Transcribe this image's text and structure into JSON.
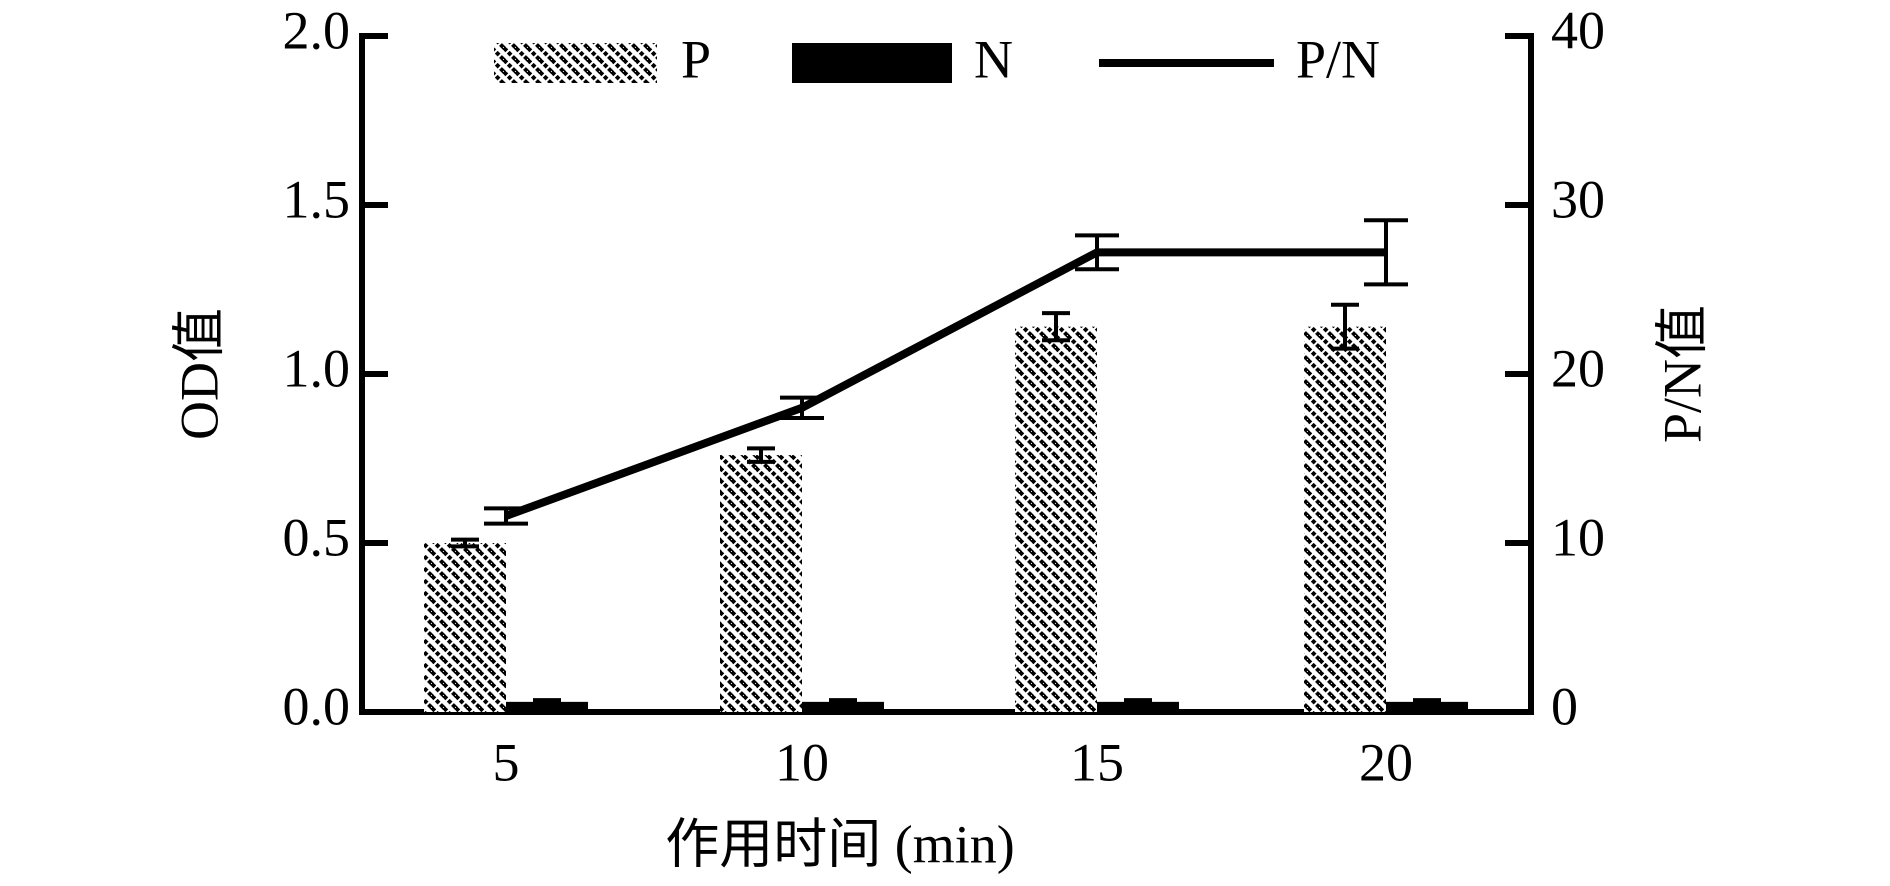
{
  "chart_data": {
    "type": "bar",
    "categories": [
      "5",
      "10",
      "15",
      "20"
    ],
    "series": [
      {
        "name": "P",
        "type": "bar",
        "color": "#000000",
        "pattern": "hatch",
        "values": [
          0.5,
          0.76,
          1.14,
          1.14
        ],
        "errors": [
          0.01,
          0.02,
          0.04,
          0.065
        ]
      },
      {
        "name": "N",
        "type": "bar",
        "color": "#000000",
        "values": [
          0.03,
          0.03,
          0.03,
          0.03
        ],
        "errors": [
          0.005,
          0.005,
          0.005,
          0.005
        ]
      },
      {
        "name": "P/N",
        "type": "line",
        "axis": "y2",
        "color": "#000000",
        "values": [
          11.6,
          18.0,
          27.2,
          27.2
        ],
        "errors": [
          0.45,
          0.6,
          1.0,
          1.9
        ]
      }
    ],
    "xlabel": "作用时间 (min)",
    "ylabel": "OD值",
    "y2label": "P/N值",
    "ylim": [
      0,
      2.0
    ],
    "yticks": [
      {
        "value": 0,
        "label": "0.0"
      },
      {
        "value": 0.5,
        "label": "0.5"
      },
      {
        "value": 1.0,
        "label": "1.0"
      },
      {
        "value": 1.5,
        "label": "1.5"
      },
      {
        "value": 2.0,
        "label": "2.0"
      }
    ],
    "y2lim": [
      0,
      40
    ],
    "y2ticks": [
      0,
      10,
      20,
      30,
      40
    ],
    "legend": "top"
  }
}
